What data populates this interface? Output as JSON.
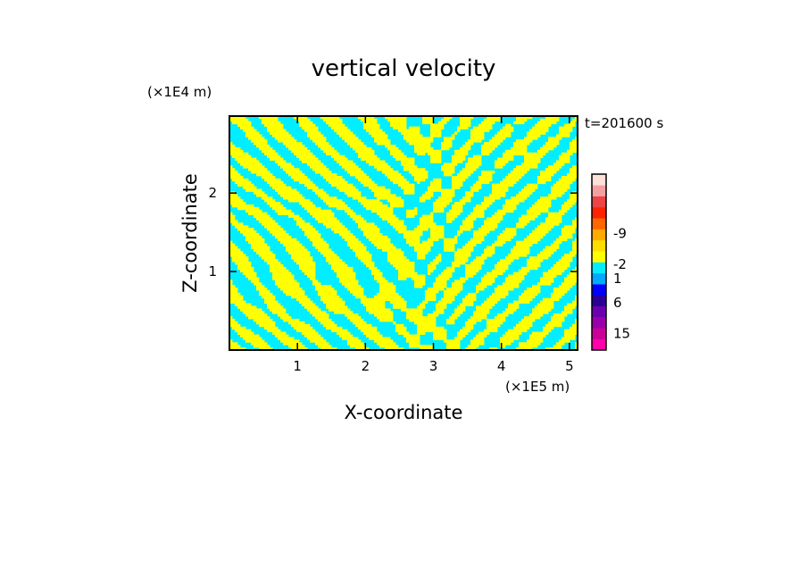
{
  "chart_data": {
    "type": "heatmap",
    "title": "vertical velocity",
    "xlabel": "X-coordinate",
    "ylabel": "Z-coordinate",
    "x_unit": "(×1E5 m)",
    "y_unit": "(×1E4 m)",
    "time_label": "t=201600 s",
    "xlim": [
      0,
      5.12
    ],
    "ylim": [
      0,
      2.98
    ],
    "xticks": [
      1,
      2,
      3,
      4,
      5
    ],
    "yticks": [
      1,
      2
    ],
    "colorbar": {
      "colors": [
        "#ff00aa",
        "#cc0099",
        "#9900aa",
        "#6a00b0",
        "#2a0096",
        "#0000ff",
        "#00aaff",
        "#00eeff",
        "#ffff00",
        "#ffdd00",
        "#ffaa00",
        "#ff6600",
        "#ff2200",
        "#ee4444",
        "#f5a0a0",
        "#fde0d8"
      ],
      "tick_labels": [
        "-9",
        "-2",
        "1",
        "6",
        "15"
      ]
    },
    "dominant_colors": {
      "positive": "#ffff00",
      "negative": "#00eeff"
    }
  }
}
